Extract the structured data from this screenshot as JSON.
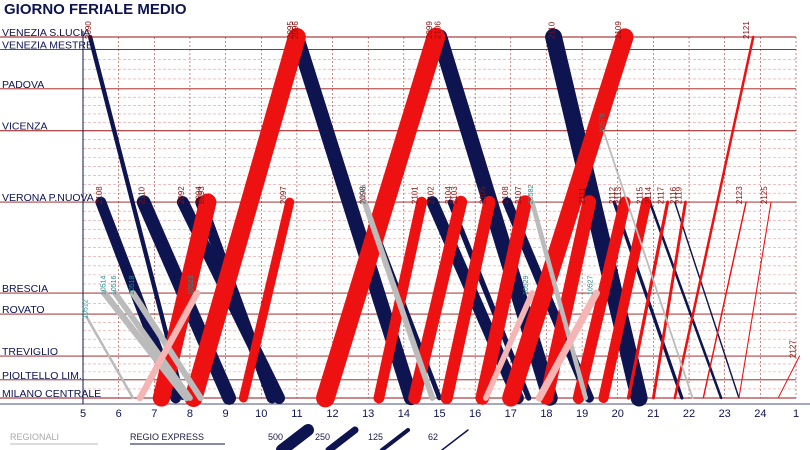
{
  "chart_data": {
    "type": "line",
    "title": "GIORNO FERIALE MEDIO",
    "x_ticks": [
      "5",
      "6",
      "7",
      "8",
      "9",
      "10",
      "11",
      "12",
      "13",
      "14",
      "15",
      "16",
      "17",
      "18",
      "19",
      "20",
      "21",
      "22",
      "23",
      "24",
      "1"
    ],
    "xlim": [
      5,
      25
    ],
    "stations": [
      {
        "name": "VENEZIA S.LUCIA",
        "km": 0
      },
      {
        "name": "VENEZIA MESTRE",
        "km": 9
      },
      {
        "name": "PADOVA",
        "km": 37
      },
      {
        "name": "VICENZA",
        "km": 67
      },
      {
        "name": "VERONA P.NUOVA",
        "km": 118
      },
      {
        "name": "BRESCIA",
        "km": 183
      },
      {
        "name": "ROVATO",
        "km": 198
      },
      {
        "name": "TREVIGLIO",
        "km": 228
      },
      {
        "name": "PIOLTELLO LIM.",
        "km": 245
      },
      {
        "name": "MILANO CENTRALE",
        "km": 258
      }
    ],
    "legend": [
      {
        "label": "REGIONALI",
        "color": "#bbbbbb"
      },
      {
        "label": "REGIO EXPRESS",
        "color": "#0d1450"
      }
    ],
    "volume_scale": [
      "500",
      "250",
      "125",
      "62"
    ],
    "colors": {
      "re_down": "#0d1450",
      "re_up": "#ee1111",
      "regional": "#bbbbbb",
      "regional_up": "#f5b5b5"
    },
    "series": [
      {
        "label": "2090",
        "kind": "re",
        "t": [
          5.2,
          7.8
        ],
        "km": [
          0,
          258
        ],
        "pax": 120
      },
      {
        "label": "2108",
        "kind": "re",
        "t": [
          5.5,
          7.6
        ],
        "km": [
          118,
          258
        ],
        "pax": 300
      },
      {
        "label": "2110",
        "kind": "re",
        "t": [
          6.7,
          9.1
        ],
        "km": [
          118,
          258
        ],
        "pax": 380
      },
      {
        "label": "2092",
        "kind": "re",
        "t": [
          7.8,
          10.5
        ],
        "km": [
          118,
          258
        ],
        "pax": 330
      },
      {
        "label": "2094",
        "kind": "re",
        "t": [
          8.3,
          10.3
        ],
        "km": [
          118,
          258
        ],
        "pax": 300
      },
      {
        "label": "2096",
        "kind": "re",
        "t": [
          11.0,
          14.2
        ],
        "km": [
          0,
          258
        ],
        "pax": 400
      },
      {
        "label": "2098",
        "kind": "re",
        "t": [
          12.9,
          15.0
        ],
        "km": [
          118,
          258
        ],
        "pax": 130
      },
      {
        "label": "2102",
        "kind": "re",
        "t": [
          14.8,
          17.2
        ],
        "km": [
          118,
          258
        ],
        "pax": 330
      },
      {
        "label": "2104",
        "kind": "re",
        "t": [
          15.3,
          17.5
        ],
        "km": [
          118,
          258
        ],
        "pax": 150
      },
      {
        "label": "2106",
        "kind": "re",
        "t": [
          15.0,
          18.1
        ],
        "km": [
          0,
          258
        ],
        "pax": 430
      },
      {
        "label": "2108",
        "kind": "re",
        "t": [
          16.9,
          19.2
        ],
        "km": [
          118,
          258
        ],
        "pax": 260
      },
      {
        "label": "2110",
        "kind": "re",
        "t": [
          18.2,
          20.6
        ],
        "km": [
          0,
          258
        ],
        "pax": 470
      },
      {
        "label": "2112",
        "kind": "re",
        "t": [
          19.9,
          21.8
        ],
        "km": [
          118,
          258
        ],
        "pax": 90
      },
      {
        "label": "2114",
        "kind": "re",
        "t": [
          20.9,
          22.9
        ],
        "km": [
          118,
          258
        ],
        "pax": 70
      },
      {
        "label": "2116",
        "kind": "re",
        "t": [
          21.6,
          23.4
        ],
        "km": [
          118,
          258
        ],
        "pax": 40
      },
      {
        "label": "2093",
        "kind": "re",
        "t": [
          7.2,
          8.5
        ],
        "km": [
          258,
          118
        ],
        "pax": 480
      },
      {
        "label": "2095",
        "kind": "re",
        "t": [
          8.1,
          11.0
        ],
        "km": [
          258,
          0
        ],
        "pax": 500
      },
      {
        "label": "2097",
        "kind": "re",
        "t": [
          9.5,
          10.8
        ],
        "km": [
          258,
          118
        ],
        "pax": 250
      },
      {
        "label": "2099",
        "kind": "re",
        "t": [
          11.8,
          14.9
        ],
        "km": [
          258,
          0
        ],
        "pax": 520
      },
      {
        "label": "2101",
        "kind": "re",
        "t": [
          13.3,
          14.5
        ],
        "km": [
          258,
          118
        ],
        "pax": 300
      },
      {
        "label": "2103",
        "kind": "re",
        "t": [
          14.3,
          15.6
        ],
        "km": [
          258,
          118
        ],
        "pax": 350
      },
      {
        "label": "2105",
        "kind": "re",
        "t": [
          15.2,
          16.4
        ],
        "km": [
          258,
          118
        ],
        "pax": 340
      },
      {
        "label": "2107",
        "kind": "re",
        "t": [
          16.2,
          17.4
        ],
        "km": [
          258,
          118
        ],
        "pax": 380
      },
      {
        "label": "2109",
        "kind": "re",
        "t": [
          17.0,
          20.2
        ],
        "km": [
          258,
          0
        ],
        "pax": 480
      },
      {
        "label": "2111",
        "kind": "re",
        "t": [
          18.0,
          19.2
        ],
        "km": [
          258,
          118
        ],
        "pax": 380
      },
      {
        "label": "2113",
        "kind": "re",
        "t": [
          18.9,
          20.2
        ],
        "km": [
          258,
          118
        ],
        "pax": 320
      },
      {
        "label": "2115",
        "kind": "re",
        "t": [
          19.6,
          20.8
        ],
        "km": [
          258,
          118
        ],
        "pax": 280
      },
      {
        "label": "2117",
        "kind": "re",
        "t": [
          20.3,
          21.4
        ],
        "km": [
          258,
          118
        ],
        "pax": 90
      },
      {
        "label": "2119",
        "kind": "re",
        "t": [
          21.0,
          21.9
        ],
        "km": [
          258,
          118
        ],
        "pax": 80
      },
      {
        "label": "2121",
        "kind": "re",
        "t": [
          21.6,
          23.8
        ],
        "km": [
          258,
          0
        ],
        "pax": 70
      },
      {
        "label": "2123",
        "kind": "re",
        "t": [
          22.4,
          23.6
        ],
        "km": [
          258,
          118
        ],
        "pax": 40
      },
      {
        "label": "2125",
        "kind": "re",
        "t": [
          23.4,
          24.3
        ],
        "km": [
          258,
          118
        ],
        "pax": 30
      },
      {
        "label": "2127",
        "kind": "re",
        "t": [
          24.5,
          25.1
        ],
        "km": [
          258,
          228
        ],
        "pax": 20
      },
      {
        "label": "10514",
        "kind": "reg",
        "t": [
          5.6,
          7.9
        ],
        "km": [
          183,
          258
        ],
        "pax": 180
      },
      {
        "label": "10516",
        "kind": "reg",
        "t": [
          5.9,
          8.0
        ],
        "km": [
          183,
          258
        ],
        "pax": 160
      },
      {
        "label": "10512",
        "kind": "reg",
        "t": [
          5.1,
          6.4
        ],
        "km": [
          200,
          258
        ],
        "pax": 70
      },
      {
        "label": "10518",
        "kind": "reg",
        "t": [
          6.4,
          8.3
        ],
        "km": [
          183,
          258
        ],
        "pax": 170
      },
      {
        "label": "20578",
        "kind": "reg",
        "t": [
          19.6,
          22.1
        ],
        "km": [
          67,
          258
        ],
        "pax": 50
      },
      {
        "label": "20576",
        "kind": "reg",
        "t": [
          12.9,
          14.8
        ],
        "km": [
          118,
          258
        ],
        "pax": 160
      },
      {
        "label": "20582",
        "kind": "reg",
        "t": [
          17.6,
          19.1
        ],
        "km": [
          118,
          258
        ],
        "pax": 130
      },
      {
        "label": "10523",
        "kind": "regup",
        "t": [
          6.6,
          8.2
        ],
        "km": [
          258,
          183
        ],
        "pax": 180
      },
      {
        "label": "10527",
        "kind": "regup",
        "t": [
          17.8,
          19.4
        ],
        "km": [
          258,
          183
        ],
        "pax": 200
      },
      {
        "label": "10529",
        "kind": "regup",
        "t": [
          16.3,
          17.6
        ],
        "km": [
          258,
          183
        ],
        "pax": 160
      }
    ]
  },
  "station_labels": [
    {
      "text": "VENEZIA S.LUCIA",
      "km": 0
    },
    {
      "text": "VENEZIA MESTRE",
      "km": 9
    },
    {
      "text": "PADOVA",
      "km": 37
    },
    {
      "text": "VICENZA",
      "km": 67
    },
    {
      "text": "VERONA P.NUOVA",
      "km": 118
    },
    {
      "text": "BRESCIA",
      "km": 183
    },
    {
      "text": "ROVATO",
      "km": 198
    },
    {
      "text": "TREVIGLIO",
      "km": 228
    },
    {
      "text": "PIOLTELLO LIM.",
      "km": 245
    },
    {
      "text": "MILANO CENTRALE",
      "km": 258
    }
  ]
}
